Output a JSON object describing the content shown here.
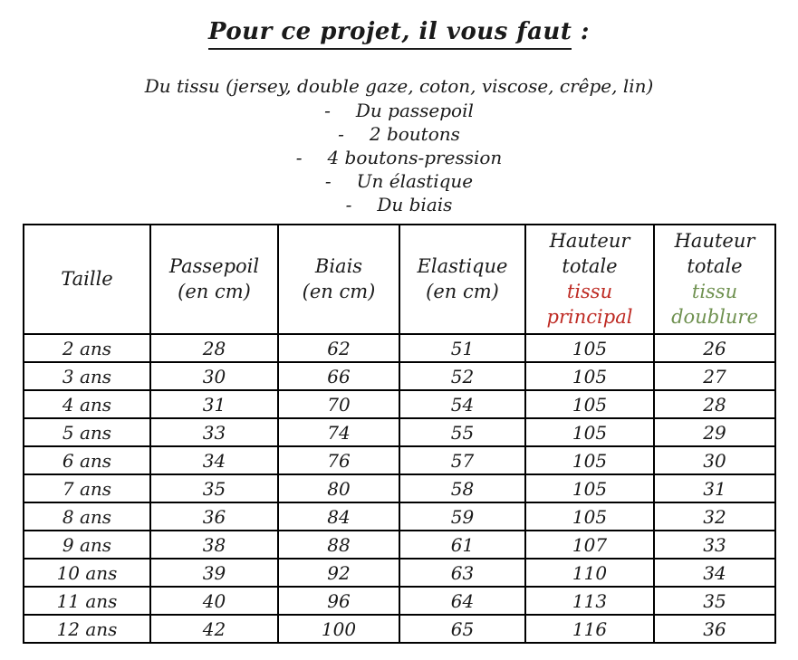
{
  "title": {
    "text": "Pour ce projet, il vous faut",
    "suffix": " :"
  },
  "materials": {
    "intro": "Du tissu (jersey, double gaze, coton, viscose, crêpe, lin)",
    "bullet": "-",
    "items": [
      "Du passepoil",
      "2 boutons",
      "4 boutons-pression",
      "Un élastique",
      "Du biais"
    ]
  },
  "colors": {
    "tissu_principal": "#BE2A23",
    "tissu_doublure": "#6F9150",
    "border": "#000000",
    "text": "#1a1a1a"
  },
  "table": {
    "headers": [
      {
        "lines": [
          "Taille"
        ]
      },
      {
        "lines": [
          "Passepoil",
          "(en cm)"
        ]
      },
      {
        "lines": [
          "Biais",
          "(en cm)"
        ]
      },
      {
        "lines": [
          "Elastique",
          "(en cm)"
        ]
      },
      {
        "lines": [
          "Hauteur",
          "totale"
        ],
        "colored": [
          "tissu",
          "principal"
        ],
        "color": "#BE2A23"
      },
      {
        "lines": [
          "Hauteur",
          "totale"
        ],
        "colored": [
          "tissu",
          "doublure"
        ],
        "color": "#6F9150"
      }
    ],
    "rows": [
      [
        "2 ans",
        "28",
        "62",
        "51",
        "105",
        "26"
      ],
      [
        "3 ans",
        "30",
        "66",
        "52",
        "105",
        "27"
      ],
      [
        "4 ans",
        "31",
        "70",
        "54",
        "105",
        "28"
      ],
      [
        "5 ans",
        "33",
        "74",
        "55",
        "105",
        "29"
      ],
      [
        "6 ans",
        "34",
        "76",
        "57",
        "105",
        "30"
      ],
      [
        "7 ans",
        "35",
        "80",
        "58",
        "105",
        "31"
      ],
      [
        "8 ans",
        "36",
        "84",
        "59",
        "105",
        "32"
      ],
      [
        "9 ans",
        "38",
        "88",
        "61",
        "107",
        "33"
      ],
      [
        "10 ans",
        "39",
        "92",
        "63",
        "110",
        "34"
      ],
      [
        "11 ans",
        "40",
        "96",
        "64",
        "113",
        "35"
      ],
      [
        "12 ans",
        "42",
        "100",
        "65",
        "116",
        "36"
      ]
    ]
  }
}
